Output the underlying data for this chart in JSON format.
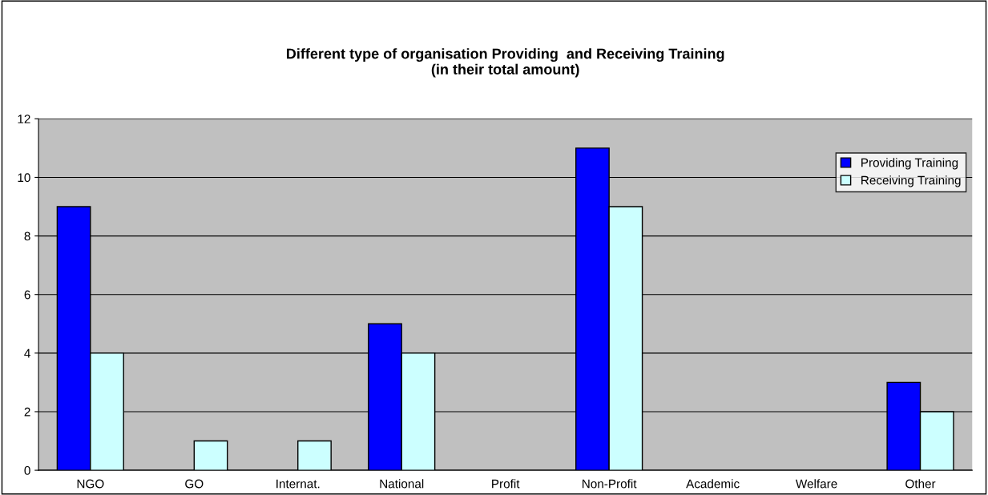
{
  "chart_data": {
    "type": "bar",
    "title": "Different type of organisation Providing  and Receiving Training\n(in their total amount)",
    "categories": [
      "NGO",
      "GO",
      "Internat.",
      "National",
      "Profit",
      "Non-Profit",
      "Academic",
      "Welfare",
      "Other"
    ],
    "series": [
      {
        "name": "Providing Training",
        "color": "#0000ff",
        "values": [
          9,
          0,
          0,
          5,
          0,
          11,
          0,
          0,
          3
        ]
      },
      {
        "name": "Receiving Training",
        "color": "#ccffff",
        "values": [
          4,
          1,
          1,
          4,
          0,
          9,
          0,
          0,
          2
        ]
      }
    ],
    "ylim": [
      0,
      12
    ],
    "yticks": [
      0,
      2,
      4,
      6,
      8,
      10,
      12
    ],
    "grid": "y",
    "legend": "top right"
  }
}
